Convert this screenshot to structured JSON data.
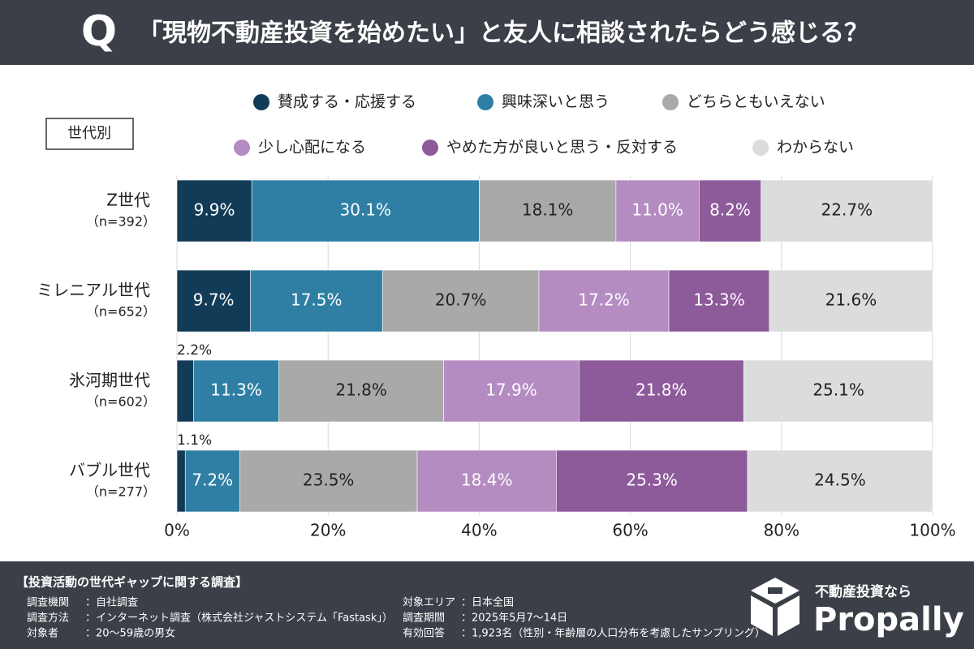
{
  "header": {
    "icon": "Q",
    "title": "「現物不動産投資を始めたい」と友人に相談されたらどう感じる？"
  },
  "tag": "世代別",
  "chart_data": {
    "type": "stacked-bar-horizontal",
    "categories": [
      "Z世代",
      "ミレニアル世代",
      "氷河期世代",
      "バブル世代"
    ],
    "sample_sizes": [
      "（n=392）",
      "（n=652）",
      "（n=602）",
      "（n=277）"
    ],
    "series": [
      {
        "name": "賛成する・応援する",
        "color": "#123b58",
        "label_color": "#ffffff",
        "values": [
          9.9,
          9.7,
          2.2,
          1.1
        ],
        "value_labels": [
          "9.9%",
          "9.7%",
          "2.2%",
          "1.1%"
        ]
      },
      {
        "name": "興味深いと思う",
        "color": "#2f7fa4",
        "label_color": "#ffffff",
        "values": [
          30.1,
          17.5,
          11.3,
          7.2
        ],
        "value_labels": [
          "30.1%",
          "17.5%",
          "11.3%",
          "7.2%"
        ]
      },
      {
        "name": "どちらともいえない",
        "color": "#a9a9a9",
        "label_color": "#222222",
        "values": [
          18.1,
          20.7,
          21.8,
          23.5
        ],
        "value_labels": [
          "18.1%",
          "20.7%",
          "21.8%",
          "23.5%"
        ]
      },
      {
        "name": "少し心配になる",
        "color": "#b48cc1",
        "label_color": "#ffffff",
        "values": [
          11.0,
          17.2,
          17.9,
          18.4
        ],
        "value_labels": [
          "11.0%",
          "17.2%",
          "17.9%",
          "18.4%"
        ]
      },
      {
        "name": "やめた方が良いと思う・反対する",
        "color": "#8d5a9a",
        "label_color": "#ffffff",
        "values": [
          8.2,
          13.3,
          21.8,
          25.3
        ],
        "value_labels": [
          "8.2%",
          "13.3%",
          "21.8%",
          "25.3%"
        ]
      },
      {
        "name": "わからない",
        "color": "#dcdcdc",
        "label_color": "#222222",
        "values": [
          22.7,
          21.6,
          25.1,
          24.5
        ],
        "value_labels": [
          "22.7%",
          "21.6%",
          "25.1%",
          "24.5%"
        ]
      }
    ],
    "xlim": [
      0,
      100
    ],
    "xticks": [
      {
        "value": 0,
        "label": "0%"
      },
      {
        "value": 20,
        "label": "20%"
      },
      {
        "value": 40,
        "label": "40%"
      },
      {
        "value": 60,
        "label": "60%"
      },
      {
        "value": 80,
        "label": "80%"
      },
      {
        "value": 100,
        "label": "100%"
      }
    ],
    "grid": true
  },
  "footer": {
    "title": "【投資活動の世代ギャップに関する調査】",
    "rows": [
      [
        "調査機関",
        "：自社調査"
      ],
      [
        "調査方法",
        "：インターネット調査（株式会社ジャストシステム「Fastask」）"
      ],
      [
        "対象者",
        "：20〜59歳の男女"
      ],
      [
        "対象エリア",
        "：日本全国"
      ],
      [
        "調査期間",
        "：2025年5月7〜14日"
      ],
      [
        "有効回答",
        "：1,923名（性別・年齢層の人口分布を考慮したサンプリング）"
      ]
    ],
    "tagline": "不動産投資なら",
    "brand": "Propally"
  }
}
